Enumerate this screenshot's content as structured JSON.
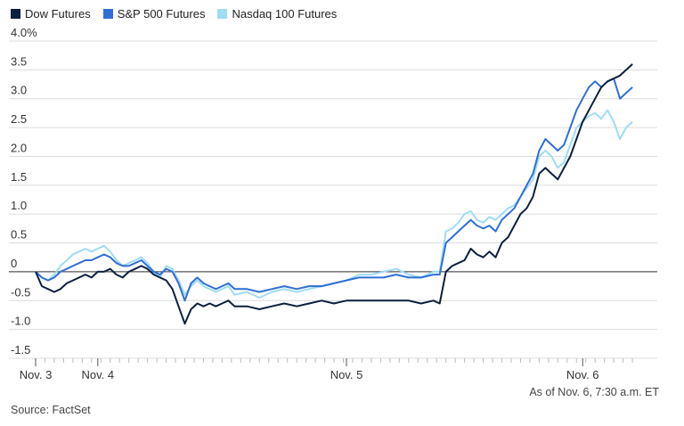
{
  "chart_data": {
    "type": "line",
    "title": "",
    "xlabel": "",
    "ylabel": "",
    "y_ticks": [
      {
        "value": 4.0,
        "label": "4.0%"
      },
      {
        "value": 3.5,
        "label": "3.5"
      },
      {
        "value": 3.0,
        "label": "3.0"
      },
      {
        "value": 2.5,
        "label": "2.5"
      },
      {
        "value": 2.0,
        "label": "2.0"
      },
      {
        "value": 1.5,
        "label": "1.5"
      },
      {
        "value": 1.0,
        "label": "1.0"
      },
      {
        "value": 0.5,
        "label": "0.5"
      },
      {
        "value": 0,
        "label": "0"
      },
      {
        "value": -0.5,
        "label": "-0.5"
      },
      {
        "value": -1.0,
        "label": "-1.0"
      },
      {
        "value": -1.5,
        "label": "-1.5"
      }
    ],
    "ylim": [
      -1.5,
      4.0
    ],
    "xlim": [
      0,
      100
    ],
    "x_ticks": [
      {
        "x": 0,
        "label": "Nov. 3"
      },
      {
        "x": 10,
        "label": "Nov. 4"
      },
      {
        "x": 50,
        "label": "Nov. 5"
      },
      {
        "x": 88,
        "label": "Nov. 6"
      }
    ],
    "grid": true,
    "legend_position": "top-left",
    "series": [
      {
        "name": "Dow Futures",
        "color": "#0b1f3f",
        "points": [
          [
            0,
            0
          ],
          [
            1,
            -0.25
          ],
          [
            2,
            -0.3
          ],
          [
            3,
            -0.35
          ],
          [
            4,
            -0.3
          ],
          [
            5,
            -0.2
          ],
          [
            6,
            -0.15
          ],
          [
            7,
            -0.1
          ],
          [
            8,
            -0.05
          ],
          [
            9,
            -0.1
          ],
          [
            10,
            0
          ],
          [
            11,
            0
          ],
          [
            12,
            0.05
          ],
          [
            13,
            -0.05
          ],
          [
            14,
            -0.1
          ],
          [
            15,
            0
          ],
          [
            16,
            0.05
          ],
          [
            17,
            0.1
          ],
          [
            18,
            0.05
          ],
          [
            19,
            -0.05
          ],
          [
            20,
            -0.1
          ],
          [
            21,
            -0.15
          ],
          [
            22,
            -0.3
          ],
          [
            23,
            -0.6
          ],
          [
            24,
            -0.9
          ],
          [
            25,
            -0.65
          ],
          [
            26,
            -0.55
          ],
          [
            27,
            -0.6
          ],
          [
            28,
            -0.55
          ],
          [
            29,
            -0.6
          ],
          [
            30,
            -0.55
          ],
          [
            31,
            -0.5
          ],
          [
            32,
            -0.6
          ],
          [
            34,
            -0.6
          ],
          [
            36,
            -0.65
          ],
          [
            38,
            -0.6
          ],
          [
            40,
            -0.55
          ],
          [
            42,
            -0.6
          ],
          [
            44,
            -0.55
          ],
          [
            46,
            -0.5
          ],
          [
            48,
            -0.55
          ],
          [
            50,
            -0.5
          ],
          [
            52,
            -0.5
          ],
          [
            54,
            -0.5
          ],
          [
            56,
            -0.5
          ],
          [
            58,
            -0.5
          ],
          [
            60,
            -0.5
          ],
          [
            62,
            -0.55
          ],
          [
            64,
            -0.5
          ],
          [
            65,
            -0.55
          ],
          [
            66,
            0
          ],
          [
            67,
            0.1
          ],
          [
            68,
            0.15
          ],
          [
            69,
            0.2
          ],
          [
            70,
            0.4
          ],
          [
            71,
            0.3
          ],
          [
            72,
            0.25
          ],
          [
            73,
            0.35
          ],
          [
            74,
            0.25
          ],
          [
            75,
            0.5
          ],
          [
            76,
            0.6
          ],
          [
            77,
            0.8
          ],
          [
            78,
            1.0
          ],
          [
            79,
            1.1
          ],
          [
            80,
            1.3
          ],
          [
            81,
            1.7
          ],
          [
            82,
            1.8
          ],
          [
            83,
            1.7
          ],
          [
            84,
            1.6
          ],
          [
            85,
            1.8
          ],
          [
            86,
            2.0
          ],
          [
            87,
            2.3
          ],
          [
            88,
            2.6
          ],
          [
            89,
            2.8
          ],
          [
            90,
            3.0
          ],
          [
            91,
            3.2
          ],
          [
            92,
            3.3
          ],
          [
            93,
            3.35
          ],
          [
            94,
            3.4
          ],
          [
            95,
            3.5
          ],
          [
            96,
            3.6
          ]
        ]
      },
      {
        "name": "S&P 500 Futures",
        "color": "#2f6fd6",
        "points": [
          [
            0,
            0
          ],
          [
            1,
            -0.1
          ],
          [
            2,
            -0.15
          ],
          [
            3,
            -0.1
          ],
          [
            4,
            0
          ],
          [
            5,
            0.05
          ],
          [
            6,
            0.1
          ],
          [
            7,
            0.15
          ],
          [
            8,
            0.2
          ],
          [
            9,
            0.2
          ],
          [
            10,
            0.25
          ],
          [
            11,
            0.3
          ],
          [
            12,
            0.25
          ],
          [
            13,
            0.15
          ],
          [
            14,
            0.1
          ],
          [
            15,
            0.1
          ],
          [
            16,
            0.15
          ],
          [
            17,
            0.2
          ],
          [
            18,
            0.1
          ],
          [
            19,
            0
          ],
          [
            20,
            -0.05
          ],
          [
            21,
            0.05
          ],
          [
            22,
            0
          ],
          [
            23,
            -0.2
          ],
          [
            24,
            -0.5
          ],
          [
            25,
            -0.2
          ],
          [
            26,
            -0.1
          ],
          [
            27,
            -0.2
          ],
          [
            28,
            -0.25
          ],
          [
            29,
            -0.3
          ],
          [
            30,
            -0.25
          ],
          [
            31,
            -0.2
          ],
          [
            32,
            -0.3
          ],
          [
            34,
            -0.3
          ],
          [
            36,
            -0.35
          ],
          [
            38,
            -0.3
          ],
          [
            40,
            -0.25
          ],
          [
            42,
            -0.3
          ],
          [
            44,
            -0.25
          ],
          [
            46,
            -0.25
          ],
          [
            48,
            -0.2
          ],
          [
            50,
            -0.15
          ],
          [
            52,
            -0.1
          ],
          [
            54,
            -0.1
          ],
          [
            56,
            -0.1
          ],
          [
            58,
            -0.05
          ],
          [
            60,
            -0.1
          ],
          [
            62,
            -0.1
          ],
          [
            64,
            -0.05
          ],
          [
            65,
            -0.05
          ],
          [
            66,
            0.5
          ],
          [
            67,
            0.6
          ],
          [
            68,
            0.7
          ],
          [
            69,
            0.8
          ],
          [
            70,
            0.9
          ],
          [
            71,
            0.8
          ],
          [
            72,
            0.75
          ],
          [
            73,
            0.8
          ],
          [
            74,
            0.7
          ],
          [
            75,
            0.9
          ],
          [
            76,
            1.0
          ],
          [
            77,
            1.1
          ],
          [
            78,
            1.3
          ],
          [
            79,
            1.5
          ],
          [
            80,
            1.7
          ],
          [
            81,
            2.1
          ],
          [
            82,
            2.3
          ],
          [
            83,
            2.2
          ],
          [
            84,
            2.1
          ],
          [
            85,
            2.2
          ],
          [
            86,
            2.5
          ],
          [
            87,
            2.8
          ],
          [
            88,
            3.0
          ],
          [
            89,
            3.2
          ],
          [
            90,
            3.3
          ],
          [
            91,
            3.2
          ],
          [
            92,
            3.3
          ],
          [
            93,
            3.35
          ],
          [
            94,
            3.0
          ],
          [
            95,
            3.1
          ],
          [
            96,
            3.2
          ]
        ]
      },
      {
        "name": "Nasdaq 100 Futures",
        "color": "#9fdcf5",
        "points": [
          [
            0,
            0
          ],
          [
            1,
            -0.1
          ],
          [
            2,
            -0.15
          ],
          [
            3,
            -0.05
          ],
          [
            4,
            0.1
          ],
          [
            5,
            0.2
          ],
          [
            6,
            0.3
          ],
          [
            7,
            0.35
          ],
          [
            8,
            0.4
          ],
          [
            9,
            0.35
          ],
          [
            10,
            0.4
          ],
          [
            11,
            0.45
          ],
          [
            12,
            0.35
          ],
          [
            13,
            0.2
          ],
          [
            14,
            0.1
          ],
          [
            15,
            0.15
          ],
          [
            16,
            0.2
          ],
          [
            17,
            0.25
          ],
          [
            18,
            0.15
          ],
          [
            19,
            0
          ],
          [
            20,
            -0.1
          ],
          [
            21,
            0.1
          ],
          [
            22,
            0.05
          ],
          [
            23,
            -0.15
          ],
          [
            24,
            -0.4
          ],
          [
            25,
            -0.25
          ],
          [
            26,
            -0.15
          ],
          [
            27,
            -0.25
          ],
          [
            28,
            -0.3
          ],
          [
            29,
            -0.35
          ],
          [
            30,
            -0.3
          ],
          [
            31,
            -0.25
          ],
          [
            32,
            -0.4
          ],
          [
            34,
            -0.35
          ],
          [
            36,
            -0.45
          ],
          [
            38,
            -0.35
          ],
          [
            40,
            -0.3
          ],
          [
            42,
            -0.35
          ],
          [
            44,
            -0.3
          ],
          [
            46,
            -0.25
          ],
          [
            48,
            -0.2
          ],
          [
            50,
            -0.15
          ],
          [
            52,
            -0.05
          ],
          [
            54,
            -0.05
          ],
          [
            56,
            0
          ],
          [
            58,
            0.05
          ],
          [
            60,
            -0.05
          ],
          [
            62,
            -0.1
          ],
          [
            64,
            0
          ],
          [
            65,
            0
          ],
          [
            66,
            0.7
          ],
          [
            67,
            0.75
          ],
          [
            68,
            0.85
          ],
          [
            69,
            1.0
          ],
          [
            70,
            1.05
          ],
          [
            71,
            0.9
          ],
          [
            72,
            0.85
          ],
          [
            73,
            0.95
          ],
          [
            74,
            0.9
          ],
          [
            75,
            1.0
          ],
          [
            76,
            1.1
          ],
          [
            77,
            1.15
          ],
          [
            78,
            1.3
          ],
          [
            79,
            1.45
          ],
          [
            80,
            1.6
          ],
          [
            81,
            2.0
          ],
          [
            82,
            2.1
          ],
          [
            83,
            2.0
          ],
          [
            84,
            1.8
          ],
          [
            85,
            1.9
          ],
          [
            86,
            2.2
          ],
          [
            87,
            2.5
          ],
          [
            88,
            2.6
          ],
          [
            89,
            2.7
          ],
          [
            90,
            2.75
          ],
          [
            91,
            2.65
          ],
          [
            92,
            2.8
          ],
          [
            93,
            2.6
          ],
          [
            94,
            2.3
          ],
          [
            95,
            2.5
          ],
          [
            96,
            2.6
          ]
        ]
      }
    ]
  },
  "footer": {
    "as_of": "As of Nov. 6, 7:30 a.m. ET",
    "source": "Source: FactSet"
  }
}
